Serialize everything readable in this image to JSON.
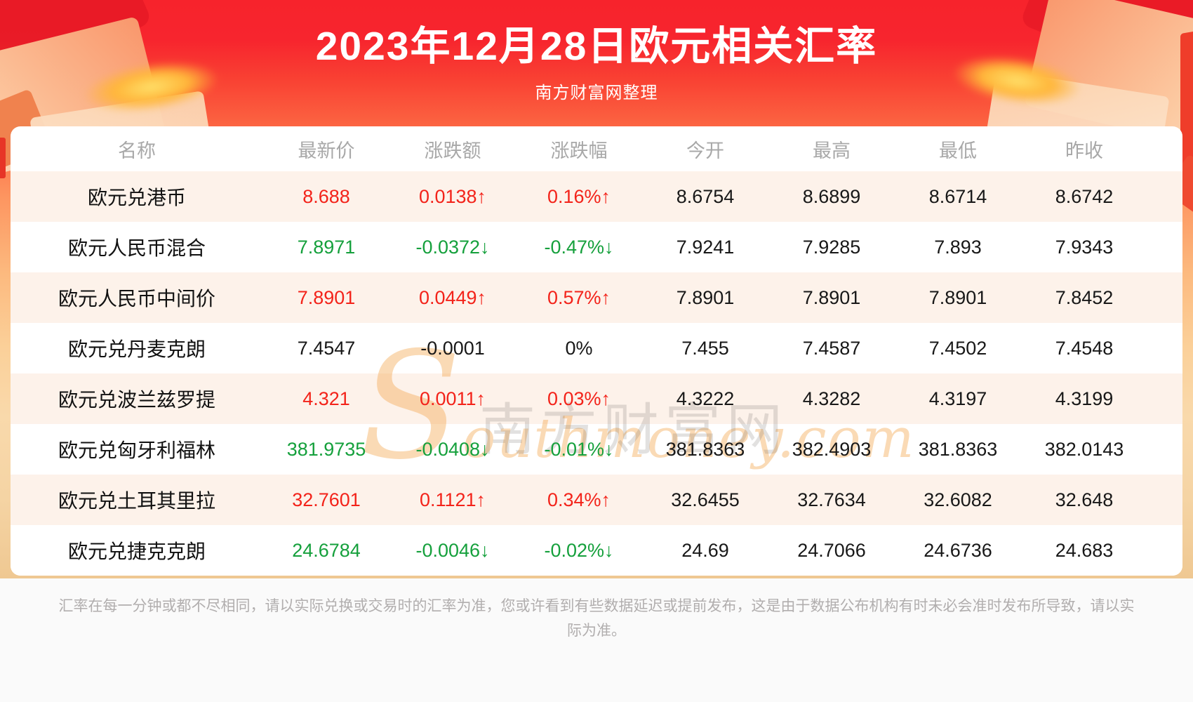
{
  "page": {
    "title": "2023年12月28日欧元相关汇率",
    "subtitle": "南方财富网整理",
    "watermark_cn": "南方财富网",
    "watermark_en": "Southmoney.com",
    "footer_disclaimer": "汇率在每一分钟或都不尽相同，请以实际兑换或交易时的汇率为准，您或许看到有些数据延迟或提前发布，这是由于数据公布机构有时未必会准时发布所导致，请以实际为准。"
  },
  "colors": {
    "up": "#f3231a",
    "down": "#15a03c",
    "neutral": "#181818",
    "header_background_red": "#f7232c",
    "row_stripe": "#fdf2ea"
  },
  "chart_data": {
    "type": "table",
    "title": "2023年12月28日欧元相关汇率",
    "columns": [
      "名称",
      "最新价",
      "涨跌额",
      "涨跌幅",
      "今开",
      "最高",
      "最低",
      "昨收"
    ],
    "rows": [
      {
        "name": "欧元兑港币",
        "latest": "8.688",
        "change": "0.0138↑",
        "change_pct": "0.16%↑",
        "open": "8.6754",
        "high": "8.6899",
        "low": "8.6714",
        "prev_close": "8.6742",
        "trend": "up"
      },
      {
        "name": "欧元人民币混合",
        "latest": "7.8971",
        "change": "-0.0372↓",
        "change_pct": "-0.47%↓",
        "open": "7.9241",
        "high": "7.9285",
        "low": "7.893",
        "prev_close": "7.9343",
        "trend": "down"
      },
      {
        "name": "欧元人民币中间价",
        "latest": "7.8901",
        "change": "0.0449↑",
        "change_pct": "0.57%↑",
        "open": "7.8901",
        "high": "7.8901",
        "low": "7.8901",
        "prev_close": "7.8452",
        "trend": "up"
      },
      {
        "name": "欧元兑丹麦克朗",
        "latest": "7.4547",
        "change": "-0.0001",
        "change_pct": "0%",
        "open": "7.455",
        "high": "7.4587",
        "low": "7.4502",
        "prev_close": "7.4548",
        "trend": "flat"
      },
      {
        "name": "欧元兑波兰兹罗提",
        "latest": "4.321",
        "change": "0.0011↑",
        "change_pct": "0.03%↑",
        "open": "4.3222",
        "high": "4.3282",
        "low": "4.3197",
        "prev_close": "4.3199",
        "trend": "up"
      },
      {
        "name": "欧元兑匈牙利福林",
        "latest": "381.9735",
        "change": "-0.0408↓",
        "change_pct": "-0.01%↓",
        "open": "381.8363",
        "high": "382.4903",
        "low": "381.8363",
        "prev_close": "382.0143",
        "trend": "down"
      },
      {
        "name": "欧元兑土耳其里拉",
        "latest": "32.7601",
        "change": "0.1121↑",
        "change_pct": "0.34%↑",
        "open": "32.6455",
        "high": "32.7634",
        "low": "32.6082",
        "prev_close": "32.648",
        "trend": "up"
      },
      {
        "name": "欧元兑捷克克朗",
        "latest": "24.6784",
        "change": "-0.0046↓",
        "change_pct": "-0.02%↓",
        "open": "24.69",
        "high": "24.7066",
        "low": "24.6736",
        "prev_close": "24.683",
        "trend": "down"
      }
    ]
  }
}
